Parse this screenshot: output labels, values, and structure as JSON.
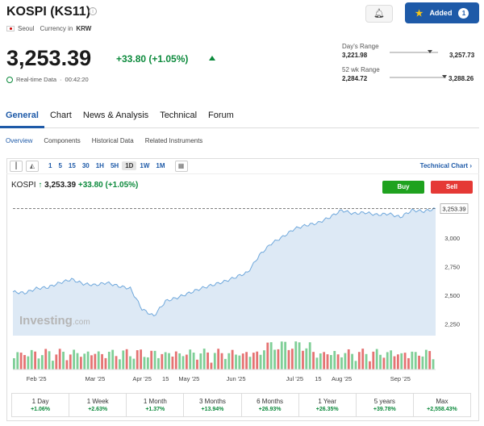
{
  "header": {
    "title": "KOSPI (KS11)",
    "exchange": "Seoul",
    "currency_label": "Currency in",
    "currency": "KRW",
    "added_label": "Added",
    "added_count": "1"
  },
  "quote": {
    "price": "3,253.39",
    "change": "+33.80 (+1.05%)",
    "realtime_label": "Real-time Data",
    "time": "00:42:20"
  },
  "ranges": {
    "day_label": "Day's Range",
    "day_low": "3,221.98",
    "day_high": "3,257.73",
    "day_position": 0.84,
    "week_label": "52 wk Range",
    "week_low": "2,284.72",
    "week_high": "3,288.26",
    "week_position": 0.97
  },
  "tabs": [
    "General",
    "Chart",
    "News & Analysis",
    "Technical",
    "Forum"
  ],
  "subtabs": [
    "Overview",
    "Components",
    "Historical Data",
    "Related Instruments"
  ],
  "toolbar": {
    "intervals": [
      "1",
      "5",
      "15",
      "30",
      "1H",
      "5H",
      "1D",
      "1W",
      "1M"
    ],
    "active_interval": "1D",
    "technical_chart": "Technical Chart"
  },
  "chart_header": {
    "name": "KOSPI",
    "price": "3,253.39",
    "change": "+33.80 (+1.05%)",
    "buy": "Buy",
    "sell": "Sell"
  },
  "chart_data": {
    "type": "area",
    "x": [
      "Jan 20",
      "Jan 27",
      "Feb 3",
      "Feb 10",
      "Feb 17",
      "Feb 24",
      "Mar 3",
      "Mar 10",
      "Mar 17",
      "Mar 24",
      "Mar 31",
      "Apr 7",
      "Apr 9",
      "Apr 14",
      "Apr 21",
      "Apr 28",
      "May 5",
      "May 12",
      "May 19",
      "May 26",
      "Jun 2",
      "Jun 9",
      "Jun 16",
      "Jun 23",
      "Jun 30",
      "Jul 7",
      "Jul 14",
      "Jul 21",
      "Jul 28",
      "Aug 4",
      "Aug 11",
      "Aug 18",
      "Aug 25",
      "Sep 1",
      "Sep 8",
      "Sep 15",
      "Sep 22"
    ],
    "values": [
      2530,
      2520,
      2560,
      2570,
      2610,
      2640,
      2600,
      2590,
      2610,
      2580,
      2560,
      2380,
      2320,
      2450,
      2480,
      2520,
      2560,
      2590,
      2620,
      2660,
      2700,
      2850,
      2950,
      3010,
      3080,
      3110,
      3130,
      3180,
      3240,
      3210,
      3220,
      3200,
      3210,
      3180,
      3240,
      3230,
      3253.39
    ],
    "ylim": [
      2150,
      3300
    ],
    "y_ticks": [
      "2,250",
      "2,500",
      "2,750",
      "3,000"
    ],
    "last_label": "3,253.39",
    "x_tick_labels": [
      "Feb '25",
      "Mar '25",
      "Apr '25",
      "15",
      "May '25",
      "Jun '25",
      "Jul '25",
      "15",
      "Aug '25",
      "Sep '25"
    ],
    "x_tick_index": [
      2,
      7,
      11,
      13,
      15,
      19,
      24,
      26,
      28,
      33
    ],
    "watermark_main": "Investing",
    "watermark_suffix": ".com",
    "line_color": "#6fa8dc",
    "fill_color": "#dde9f5"
  },
  "performance": [
    {
      "label": "1 Day",
      "value": "+1.06%"
    },
    {
      "label": "1 Week",
      "value": "+2.63%"
    },
    {
      "label": "1 Month",
      "value": "+1.37%"
    },
    {
      "label": "3 Months",
      "value": "+13.94%"
    },
    {
      "label": "6 Months",
      "value": "+26.93%"
    },
    {
      "label": "1 Year",
      "value": "+26.35%"
    },
    {
      "label": "5 years",
      "value": "+39.78%"
    },
    {
      "label": "Max",
      "value": "+2,558.43%"
    }
  ]
}
